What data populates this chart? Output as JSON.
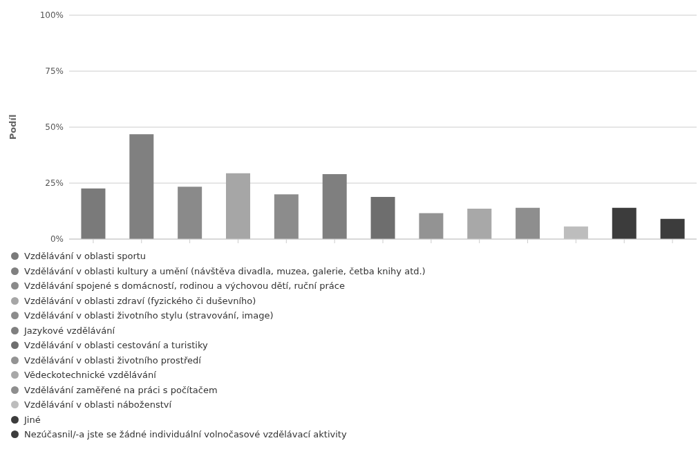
{
  "chart_data": {
    "type": "bar",
    "ylabel": "Podíl",
    "categories": [
      null,
      null,
      null,
      null,
      null,
      null,
      null,
      null,
      null,
      null,
      null,
      null,
      null
    ],
    "series": [
      {
        "name": "Vzdělávání v oblasti sportu",
        "color": "#7a7a7a",
        "values": [
          22.6,
          null,
          null,
          null,
          null,
          null,
          null,
          null,
          null,
          null,
          null,
          null,
          null
        ]
      },
      {
        "name": "Vzdělávání v oblasti kultury a umění (návštěva divadla, muzea, galerie, četba knihy atd.)",
        "color": "#808080",
        "values": [
          null,
          46.8,
          null,
          null,
          null,
          null,
          null,
          null,
          null,
          null,
          null,
          null,
          null
        ]
      },
      {
        "name": "Vzdělávání spojené s domácností, rodinou a výchovou dětí, ruční práce",
        "color": "#8a8a8a",
        "values": [
          null,
          null,
          23.4,
          null,
          null,
          null,
          null,
          null,
          null,
          null,
          null,
          null,
          null
        ]
      },
      {
        "name": "Vzdělávání v oblasti zdraví (fyzického či duševního)",
        "color": "#a6a6a6",
        "values": [
          null,
          null,
          null,
          29.4,
          null,
          null,
          null,
          null,
          null,
          null,
          null,
          null,
          null
        ]
      },
      {
        "name": "Vzdělávání v oblasti životního stylu (stravování, image)",
        "color": "#8c8c8c",
        "values": [
          null,
          null,
          null,
          null,
          20,
          null,
          null,
          null,
          null,
          null,
          null,
          null,
          null
        ]
      },
      {
        "name": "Jazykové vzdělávání",
        "color": "#7f7f7f",
        "values": [
          null,
          null,
          null,
          null,
          null,
          29,
          null,
          null,
          null,
          null,
          null,
          null,
          null
        ]
      },
      {
        "name": "Vzdělávání v oblasti cestování a turistiky",
        "color": "#6e6e6e",
        "values": [
          null,
          null,
          null,
          null,
          null,
          null,
          18.8,
          null,
          null,
          null,
          null,
          null,
          null
        ]
      },
      {
        "name": "Vzdělávání v oblasti životního prostředí",
        "color": "#939393",
        "values": [
          null,
          null,
          null,
          null,
          null,
          null,
          null,
          11.6,
          null,
          null,
          null,
          null,
          null
        ]
      },
      {
        "name": "Vědeckotechnické vzdělávání",
        "color": "#a8a8a8",
        "values": [
          null,
          null,
          null,
          null,
          null,
          null,
          null,
          null,
          13.6,
          null,
          null,
          null,
          null
        ]
      },
      {
        "name": "Vzdělávání zaměřené na práci s počítačem",
        "color": "#8e8e8e",
        "values": [
          null,
          null,
          null,
          null,
          null,
          null,
          null,
          null,
          null,
          14,
          null,
          null,
          null
        ]
      },
      {
        "name": "Vzdělávání v oblasti náboženství",
        "color": "#bdbdbd",
        "values": [
          null,
          null,
          null,
          null,
          null,
          null,
          null,
          null,
          null,
          null,
          5.6,
          null,
          null
        ]
      },
      {
        "name": "Jiné",
        "color": "#3c3c3c",
        "values": [
          null,
          null,
          null,
          null,
          null,
          null,
          null,
          null,
          null,
          null,
          null,
          14,
          null
        ]
      },
      {
        "name": "Nezúčasnil/-a jste se žádné individuální volnočasové vzdělávací aktivity",
        "color": "#3c3c3c",
        "values": [
          null,
          null,
          null,
          null,
          null,
          null,
          null,
          null,
          null,
          null,
          null,
          null,
          9
        ]
      }
    ],
    "ylim": [
      0,
      100
    ],
    "yticks": [
      {
        "value": 0,
        "label": "0%"
      },
      {
        "value": 25,
        "label": "25%"
      },
      {
        "value": 50,
        "label": "50%"
      },
      {
        "value": 75,
        "label": "75%"
      },
      {
        "value": 100,
        "label": "100%"
      }
    ],
    "grid": "y",
    "legend": "bottom"
  }
}
